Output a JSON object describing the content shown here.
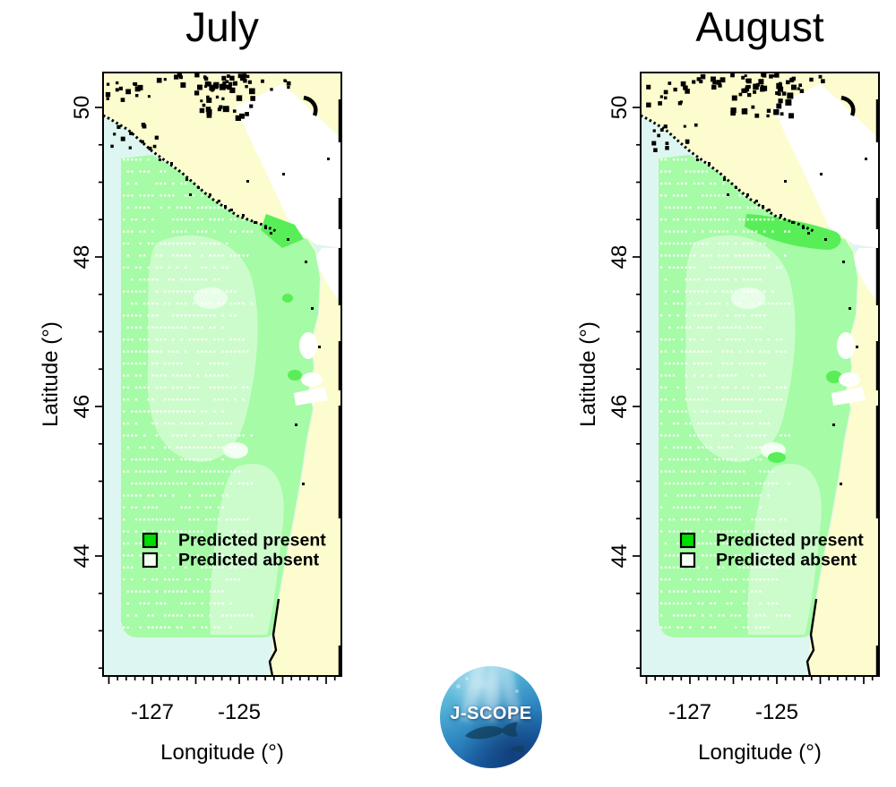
{
  "panels": [
    {
      "title": "July",
      "y_axis": {
        "label": "Latitude (°)",
        "tick_labels": [
          "50",
          "48",
          "46",
          "44"
        ]
      },
      "x_axis": {
        "label": "Longitude (°)",
        "tick_labels": [
          "-127",
          "-125"
        ]
      },
      "legend": {
        "present_label": "Predicted present",
        "absent_label": "Predicted absent"
      }
    },
    {
      "title": "August",
      "y_axis": {
        "label": "Latitude (°)",
        "tick_labels": [
          "50",
          "48",
          "46",
          "44"
        ]
      },
      "x_axis": {
        "label": "Longitude (°)",
        "tick_labels": [
          "-127",
          "-125"
        ]
      },
      "legend": {
        "present_label": "Predicted present",
        "absent_label": "Predicted absent"
      }
    }
  ],
  "logo": {
    "text": "J-SCOPE"
  },
  "colors": {
    "land": "#fcfccf",
    "ocean_outside": "#def6f1",
    "present_fill": "#a6fba6",
    "present_fill_light": "#ccfccc",
    "present_fill_dark": "#58ee58",
    "unmodeled_white": "#ffffff",
    "legend_present": "#00dd00",
    "legend_absent": "#f6fff3",
    "coast": "#000000",
    "text": "#000000"
  },
  "chart_data": {
    "type": "map",
    "panels": [
      "July",
      "August"
    ],
    "xlabel": "Longitude (°)",
    "xlim": [
      -128.1,
      -122.6
    ],
    "xticks": [
      -127,
      -125
    ],
    "ylabel": "Latitude (°)",
    "ylim": [
      42.5,
      50.6
    ],
    "yticks": [
      44,
      46,
      48,
      50
    ],
    "legend": [
      "Predicted present",
      "Predicted absent"
    ],
    "summary": "Model domain over the continental shelf off Vancouver Island, Washington and Oregon is almost entirely shaded green (predicted present) in both July and August; land is pale yellow, unmodeled inland waters (Strait of Georgia / Puget Sound, estuaries) are white, and ocean outside the model domain is pale blue."
  }
}
